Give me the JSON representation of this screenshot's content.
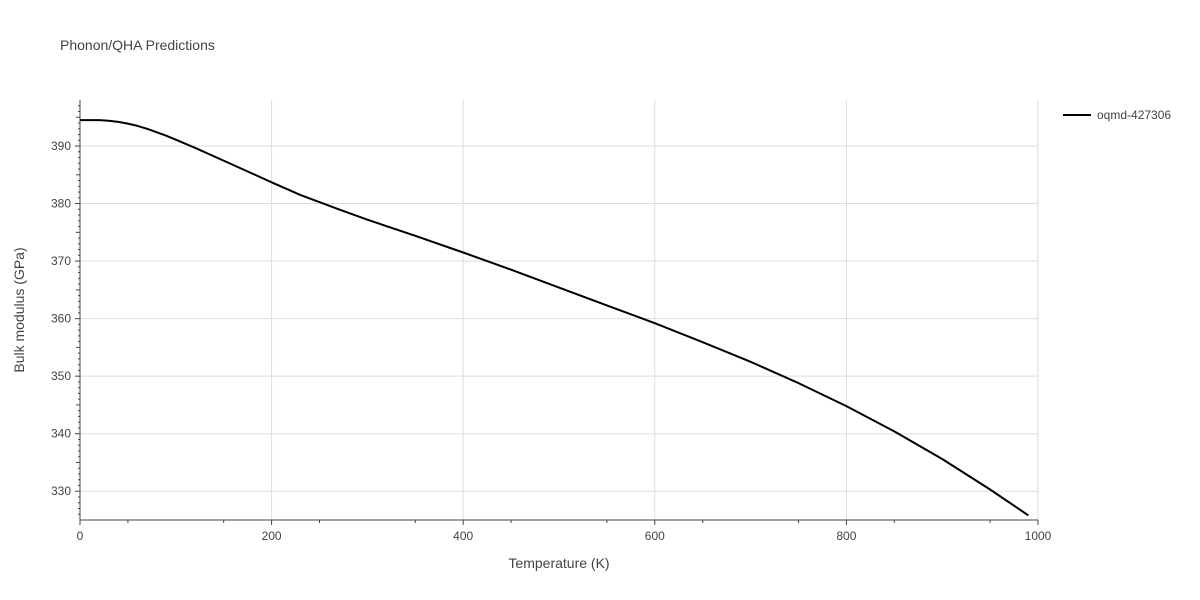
{
  "chart_data": {
    "type": "line",
    "title": "Phonon/QHA Predictions",
    "xlabel": "Temperature (K)",
    "ylabel": "Bulk modulus (GPa)",
    "xlim": [
      0,
      1000
    ],
    "ylim": [
      325,
      398
    ],
    "x_ticks": [
      0,
      200,
      400,
      600,
      800,
      1000
    ],
    "y_ticks": [
      330,
      340,
      350,
      360,
      370,
      380,
      390
    ],
    "grid": true,
    "legend_position": "top-right",
    "series": [
      {
        "name": "oqmd-427306",
        "color": "#000000",
        "x": [
          0,
          10,
          20,
          30,
          40,
          50,
          60,
          70,
          80,
          90,
          100,
          120,
          140,
          160,
          180,
          200,
          230,
          270,
          300,
          350,
          400,
          450,
          500,
          550,
          600,
          650,
          700,
          750,
          800,
          850,
          900,
          950,
          990
        ],
        "y": [
          394.5,
          394.5,
          394.5,
          394.4,
          394.2,
          393.9,
          393.5,
          393,
          392.4,
          391.8,
          391.1,
          389.7,
          388.2,
          386.7,
          385.2,
          383.7,
          381.5,
          379,
          377.2,
          374.4,
          371.5,
          368.5,
          365.4,
          362.3,
          359.2,
          355.9,
          352.5,
          348.8,
          344.8,
          340.4,
          335.6,
          330.3,
          325.8
        ]
      }
    ]
  }
}
